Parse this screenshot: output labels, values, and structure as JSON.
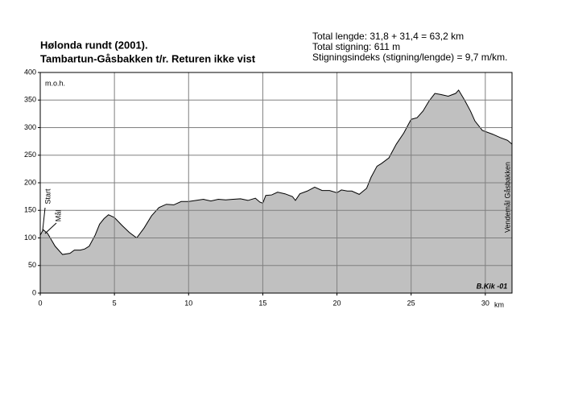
{
  "chart_data": {
    "type": "area",
    "title": "Hølonda rundt (2001).",
    "subtitle": "Tambartun-Gåsbakken t/r. Returen ikke vist",
    "info": [
      "Total lengde: 31,8 + 31,4 = 63,2 km",
      "Total stigning:  611 m",
      "Stigningsindeks (stigning/lengde) = 9,7 m/km."
    ],
    "ylabel": "m.o.h.",
    "xlabel": "km",
    "annotations": [
      "Start",
      "Mål",
      "Vendemål Gåsbakken",
      "B.Kik -01"
    ],
    "color": "#c0c0c0",
    "grid": true,
    "xlim": [
      0,
      31.8
    ],
    "ylim": [
      0,
      400
    ],
    "xticks": [
      0,
      5,
      10,
      15,
      20,
      25,
      30
    ],
    "yticks": [
      0,
      50,
      100,
      150,
      200,
      250,
      300,
      350,
      400
    ],
    "x": [
      0,
      0.2,
      0.5,
      1,
      1.5,
      2,
      2.3,
      2.7,
      3,
      3.3,
      3.7,
      4,
      4.3,
      4.6,
      5,
      5.5,
      6,
      6.5,
      7,
      7.5,
      8,
      8.5,
      9,
      9.5,
      10,
      10.5,
      11,
      11.5,
      12,
      12.5,
      13,
      13.5,
      14,
      14.5,
      14.8,
      15,
      15.2,
      15.6,
      16,
      16.5,
      17,
      17.2,
      17.5,
      18,
      18.5,
      19,
      19.5,
      20,
      20.3,
      20.7,
      21,
      21.5,
      22,
      22.3,
      22.7,
      23,
      23.5,
      24,
      24.5,
      25,
      25.4,
      25.8,
      26.2,
      26.6,
      27,
      27.5,
      28,
      28.2,
      28.6,
      29,
      29.3,
      29.8,
      30.5,
      31,
      31.5,
      31.8
    ],
    "values": [
      105,
      115,
      108,
      85,
      70,
      72,
      78,
      78,
      80,
      85,
      105,
      125,
      135,
      142,
      137,
      123,
      110,
      100,
      118,
      140,
      155,
      161,
      160,
      166,
      166,
      168,
      170,
      167,
      170,
      169,
      170,
      171,
      168,
      172,
      165,
      163,
      177,
      178,
      183,
      180,
      175,
      168,
      180,
      185,
      192,
      186,
      186,
      182,
      187,
      185,
      185,
      179,
      190,
      210,
      230,
      235,
      245,
      270,
      290,
      315,
      318,
      330,
      348,
      362,
      360,
      357,
      362,
      368,
      350,
      330,
      312,
      295,
      288,
      282,
      277,
      270
    ]
  }
}
